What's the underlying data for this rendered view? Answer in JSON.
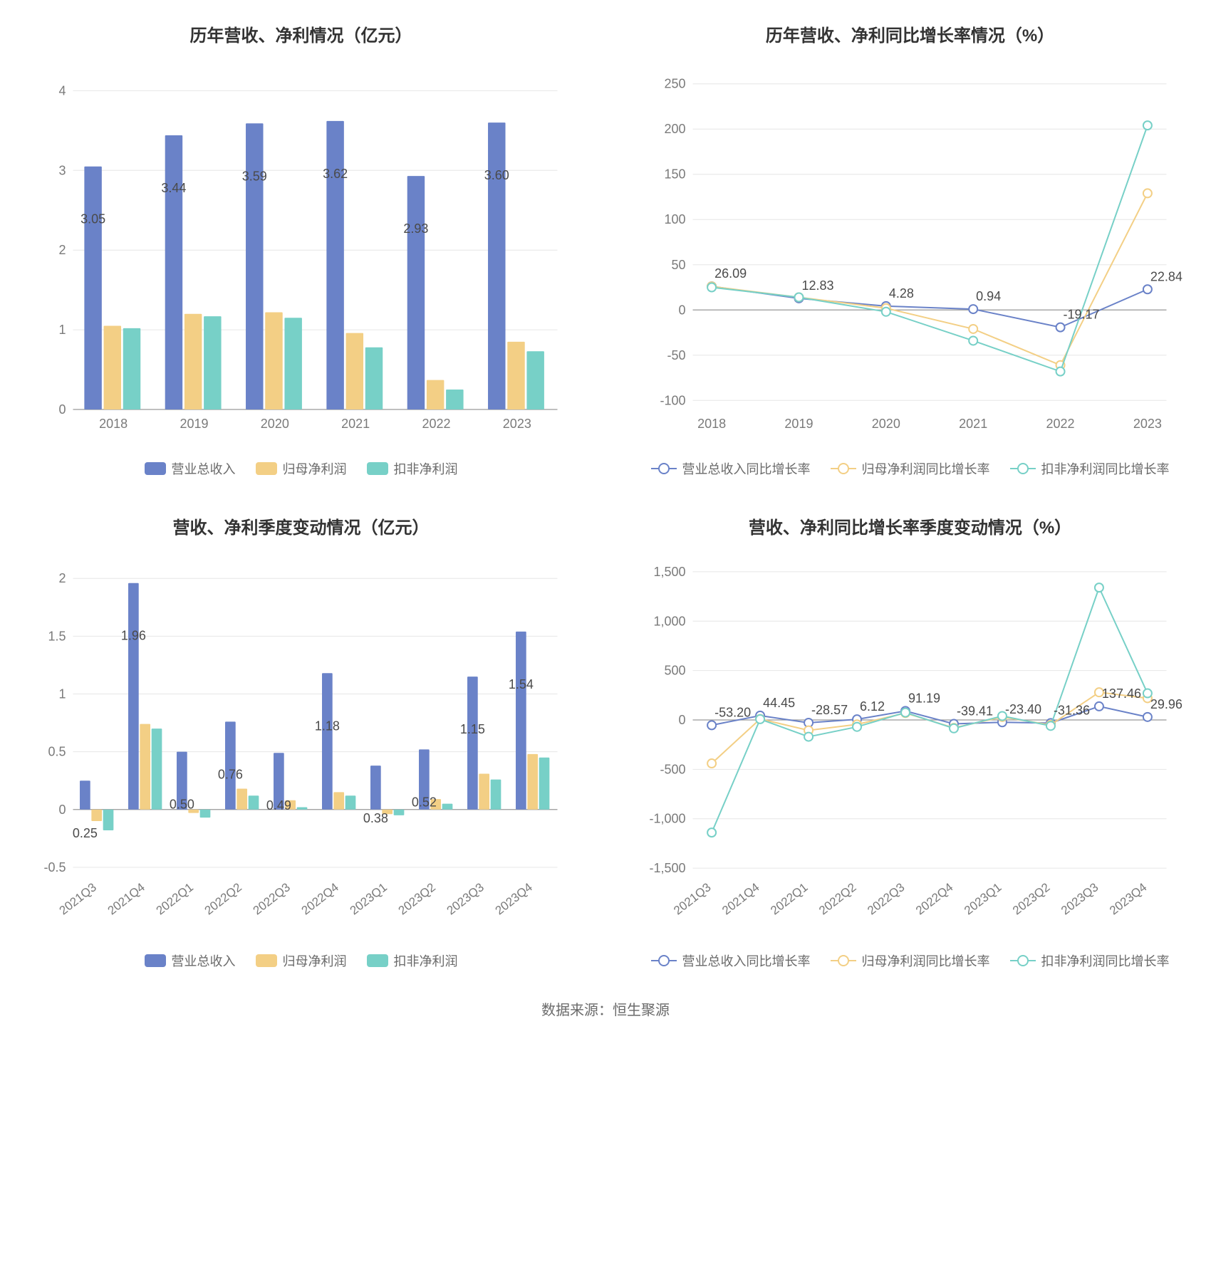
{
  "colors": {
    "series_bar": [
      "#6a82c8",
      "#f3cf85",
      "#77d0c7"
    ],
    "series_line": [
      "#6a82c8",
      "#f3cf85",
      "#77d0c7"
    ],
    "grid": "#e6e6e6",
    "axis": "#999999",
    "text_axis": "#7a7a7a",
    "text_label": "#4a4a4a",
    "background": "#ffffff",
    "footer_text": "#6a6a6a",
    "title_text": "#333333"
  },
  "typography": {
    "title_fontsize": 24,
    "axis_fontsize": 18,
    "label_fontsize": 18,
    "legend_fontsize": 18,
    "footer_fontsize": 20
  },
  "chart1": {
    "type": "bar",
    "title": "历年营收、净利情况（亿元）",
    "categories": [
      "2018",
      "2019",
      "2020",
      "2021",
      "2022",
      "2023"
    ],
    "series": [
      {
        "name": "营业总收入",
        "values": [
          3.05,
          3.44,
          3.59,
          3.62,
          2.93,
          3.6
        ]
      },
      {
        "name": "归母净利润",
        "values": [
          1.05,
          1.2,
          1.22,
          0.96,
          0.37,
          0.85
        ]
      },
      {
        "name": "扣非净利润",
        "values": [
          1.02,
          1.17,
          1.15,
          0.78,
          0.25,
          0.73
        ]
      }
    ],
    "value_labels_on": 0,
    "ylim": [
      0,
      4.2
    ],
    "yticks": [
      0,
      1,
      2,
      3,
      4
    ],
    "bar_group_width": 0.72,
    "legend": [
      "营业总收入",
      "归母净利润",
      "扣非净利润"
    ]
  },
  "chart2": {
    "type": "line",
    "title": "历年营收、净利同比增长率情况（%）",
    "categories": [
      "2018",
      "2019",
      "2020",
      "2021",
      "2022",
      "2023"
    ],
    "series": [
      {
        "name": "营业总收入同比增长率",
        "values": [
          26.09,
          12.83,
          4.28,
          0.94,
          -19.17,
          22.84
        ]
      },
      {
        "name": "归母净利润同比增长率",
        "values": [
          26.0,
          14.0,
          2.0,
          -21.0,
          -61.0,
          129.0
        ]
      },
      {
        "name": "扣非净利润同比增长率",
        "values": [
          25.0,
          14.0,
          -2.0,
          -34.0,
          -68.0,
          204.0
        ]
      }
    ],
    "value_labels_on": 0,
    "ylim": [
      -110,
      260
    ],
    "yticks": [
      -100,
      -50,
      0,
      50,
      100,
      150,
      200,
      250
    ],
    "legend": [
      "营业总收入同比增长率",
      "归母净利润同比增长率",
      "扣非净利润同比增长率"
    ],
    "marker_radius": 6,
    "line_width": 2
  },
  "chart3": {
    "type": "bar",
    "title": "营收、净利季度变动情况（亿元）",
    "categories": [
      "2021Q3",
      "2021Q4",
      "2022Q1",
      "2022Q2",
      "2022Q3",
      "2022Q4",
      "2023Q1",
      "2023Q2",
      "2023Q3",
      "2023Q4"
    ],
    "series": [
      {
        "name": "营业总收入",
        "values": [
          0.25,
          1.96,
          0.5,
          0.76,
          0.49,
          1.18,
          0.38,
          0.52,
          1.15,
          1.54
        ]
      },
      {
        "name": "归母净利润",
        "values": [
          -0.1,
          0.74,
          -0.03,
          0.18,
          0.08,
          0.15,
          -0.04,
          0.09,
          0.31,
          0.48
        ]
      },
      {
        "name": "扣非净利润",
        "values": [
          -0.18,
          0.7,
          -0.07,
          0.12,
          0.02,
          0.12,
          -0.05,
          0.05,
          0.26,
          0.45
        ]
      }
    ],
    "value_labels_on": 0,
    "ylim": [
      -0.55,
      2.1
    ],
    "yticks": [
      -0.5,
      0,
      0.5,
      1,
      1.5,
      2
    ],
    "bar_group_width": 0.72,
    "rotate_x": true,
    "legend": [
      "营业总收入",
      "归母净利润",
      "扣非净利润"
    ]
  },
  "chart4": {
    "type": "line",
    "title": "营收、净利同比增长率季度变动情况（%）",
    "categories": [
      "2021Q3",
      "2021Q4",
      "2022Q1",
      "2022Q2",
      "2022Q3",
      "2022Q4",
      "2023Q1",
      "2023Q2",
      "2023Q3",
      "2023Q4"
    ],
    "series": [
      {
        "name": "营业总收入同比增长率",
        "values": [
          -53.2,
          44.45,
          -28.57,
          6.12,
          91.19,
          -39.41,
          -23.4,
          -31.36,
          137.46,
          29.96
        ]
      },
      {
        "name": "归母净利润同比增长率",
        "values": [
          -440,
          10,
          -105,
          -45,
          70,
          -80,
          30,
          -50,
          280,
          220
        ]
      },
      {
        "name": "扣非净利润同比增长率",
        "values": [
          -1140,
          8,
          -170,
          -70,
          75,
          -85,
          40,
          -60,
          1340,
          270
        ]
      }
    ],
    "value_labels_on": 0,
    "ylim": [
      -1550,
      1550
    ],
    "yticks": [
      -1500,
      -1000,
      -500,
      0,
      500,
      1000,
      1500
    ],
    "ytick_labels": [
      "-1,500",
      "-1,000",
      "-500",
      "0",
      "500",
      "1,000",
      "1,500"
    ],
    "legend": [
      "营业总收入同比增长率",
      "归母净利润同比增长率",
      "扣非净利润同比增长率"
    ],
    "marker_radius": 6,
    "line_width": 2,
    "rotate_x": true
  },
  "footer": "数据来源：恒生聚源"
}
